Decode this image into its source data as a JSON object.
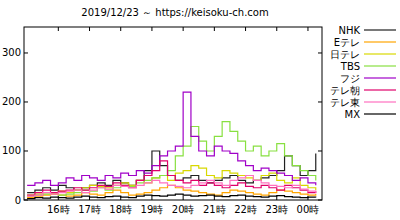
{
  "chart_data": {
    "type": "line",
    "title": "2019/12/23 ～  https://keisoku-ch.com",
    "line_style": "steps",
    "legend": "right",
    "x": [
      15,
      15.25,
      15.5,
      15.75,
      16,
      16.25,
      16.5,
      16.75,
      17,
      17.25,
      17.5,
      17.75,
      18,
      18.25,
      18.5,
      18.75,
      19,
      19.25,
      19.5,
      19.75,
      20,
      20.25,
      20.5,
      20.75,
      21,
      21.25,
      21.5,
      21.75,
      22,
      22.25,
      22.5,
      22.75,
      23,
      23.25,
      23.5,
      23.75,
      24,
      24.25
    ],
    "xlim": [
      14.9,
      24.45
    ],
    "xticks": [
      {
        "value": 16,
        "label": "16時"
      },
      {
        "value": 17,
        "label": "17時"
      },
      {
        "value": 18,
        "label": "18時"
      },
      {
        "value": 19,
        "label": "19時"
      },
      {
        "value": 20,
        "label": "20時"
      },
      {
        "value": 21,
        "label": "21時"
      },
      {
        "value": 22,
        "label": "22時"
      },
      {
        "value": 23,
        "label": "23時"
      },
      {
        "value": 24,
        "label": "00時"
      }
    ],
    "ylim": [
      0,
      353
    ],
    "yticks": [
      0,
      100,
      200,
      300
    ],
    "series": [
      {
        "name": "NHK",
        "color": "#202020",
        "values": [
          15,
          20,
          25,
          20,
          30,
          25,
          20,
          25,
          30,
          35,
          30,
          40,
          35,
          30,
          40,
          60,
          100,
          70,
          50,
          40,
          45,
          50,
          40,
          35,
          40,
          45,
          50,
          40,
          35,
          40,
          45,
          50,
          60,
          90,
          70,
          50,
          60,
          95
        ]
      },
      {
        "name": "Eテレ",
        "color": "#ffa500",
        "values": [
          5,
          8,
          10,
          12,
          10,
          8,
          10,
          15,
          12,
          10,
          15,
          20,
          15,
          10,
          12,
          15,
          20,
          25,
          30,
          25,
          20,
          18,
          15,
          12,
          10,
          15,
          20,
          18,
          15,
          12,
          10,
          15,
          20,
          18,
          15,
          12,
          10,
          12
        ]
      },
      {
        "name": "日テレ",
        "color": "#d8d800",
        "values": [
          10,
          12,
          15,
          12,
          18,
          15,
          20,
          25,
          30,
          28,
          25,
          30,
          35,
          30,
          40,
          35,
          45,
          50,
          40,
          55,
          60,
          70,
          65,
          50,
          45,
          60,
          55,
          50,
          45,
          40,
          50,
          55,
          40,
          35,
          45,
          30,
          25,
          20
        ]
      },
      {
        "name": "TBS",
        "color": "#88e040",
        "values": [
          8,
          10,
          12,
          15,
          10,
          12,
          15,
          20,
          18,
          25,
          20,
          25,
          30,
          28,
          35,
          40,
          45,
          50,
          60,
          90,
          110,
          150,
          120,
          100,
          130,
          160,
          140,
          120,
          100,
          110,
          90,
          100,
          115,
          90,
          70,
          60,
          50,
          40
        ]
      },
      {
        "name": "フジ",
        "color": "#a000c8",
        "values": [
          30,
          35,
          40,
          30,
          35,
          45,
          40,
          50,
          45,
          40,
          50,
          45,
          55,
          50,
          60,
          55,
          70,
          90,
          100,
          110,
          220,
          130,
          100,
          90,
          110,
          100,
          95,
          80,
          70,
          60,
          65,
          60,
          55,
          50,
          40,
          45,
          35,
          30
        ]
      },
      {
        "name": "テレ朝",
        "color": "#e0006a",
        "values": [
          10,
          15,
          20,
          15,
          18,
          20,
          25,
          20,
          25,
          30,
          28,
          35,
          30,
          25,
          40,
          50,
          60,
          80,
          50,
          40,
          35,
          40,
          30,
          35,
          30,
          25,
          30,
          35,
          28,
          25,
          30,
          25,
          20,
          30,
          25,
          20,
          15,
          18
        ]
      },
      {
        "name": "テレ東",
        "color": "#ff70c0",
        "values": [
          8,
          10,
          15,
          12,
          15,
          18,
          20,
          15,
          20,
          25,
          22,
          30,
          28,
          25,
          30,
          35,
          40,
          35,
          30,
          28,
          25,
          30,
          35,
          40,
          35,
          30,
          40,
          45,
          50,
          40,
          35,
          30,
          28,
          25,
          30,
          22,
          18,
          15
        ]
      },
      {
        "name": "MX",
        "color": "#000000",
        "values": [
          3,
          5,
          4,
          6,
          5,
          4,
          6,
          8,
          6,
          5,
          7,
          8,
          6,
          5,
          8,
          10,
          9,
          8,
          10,
          12,
          10,
          8,
          9,
          10,
          8,
          7,
          9,
          10,
          8,
          7,
          6,
          8,
          9,
          7,
          6,
          5,
          6,
          5
        ]
      }
    ]
  }
}
